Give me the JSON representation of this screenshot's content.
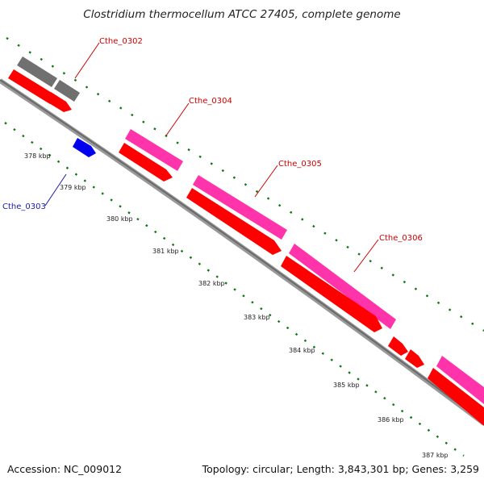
{
  "title": "Clostridium thermocellum ATCC 27405, complete genome",
  "accession": "Accession: NC_009012",
  "summary": "Topology: circular; Length: 3,843,301 bp; Genes: 3,259",
  "ticks": [
    "378 kbp",
    "379 kbp",
    "380 kbp",
    "381 kbp",
    "382 kbp",
    "383 kbp",
    "384 kbp",
    "385 kbp",
    "386 kbp",
    "387 kbp"
  ],
  "gene_labels": [
    {
      "text": "Cthe_0302",
      "color": "#cc0000"
    },
    {
      "text": "Cthe_0303",
      "color": "#1a1aaa"
    },
    {
      "text": "Cthe_0304",
      "color": "#cc0000"
    },
    {
      "text": "Cthe_0305",
      "color": "#cc0000"
    },
    {
      "text": "Cthe_0306",
      "color": "#cc0000"
    }
  ],
  "colors": {
    "cds_red": "#ff0000",
    "cds_pink": "#ff33aa",
    "cds_gray": "#707070",
    "cds_blue": "#0000ee",
    "backbone": "#8c8c8c",
    "tick_green": "#117711"
  }
}
